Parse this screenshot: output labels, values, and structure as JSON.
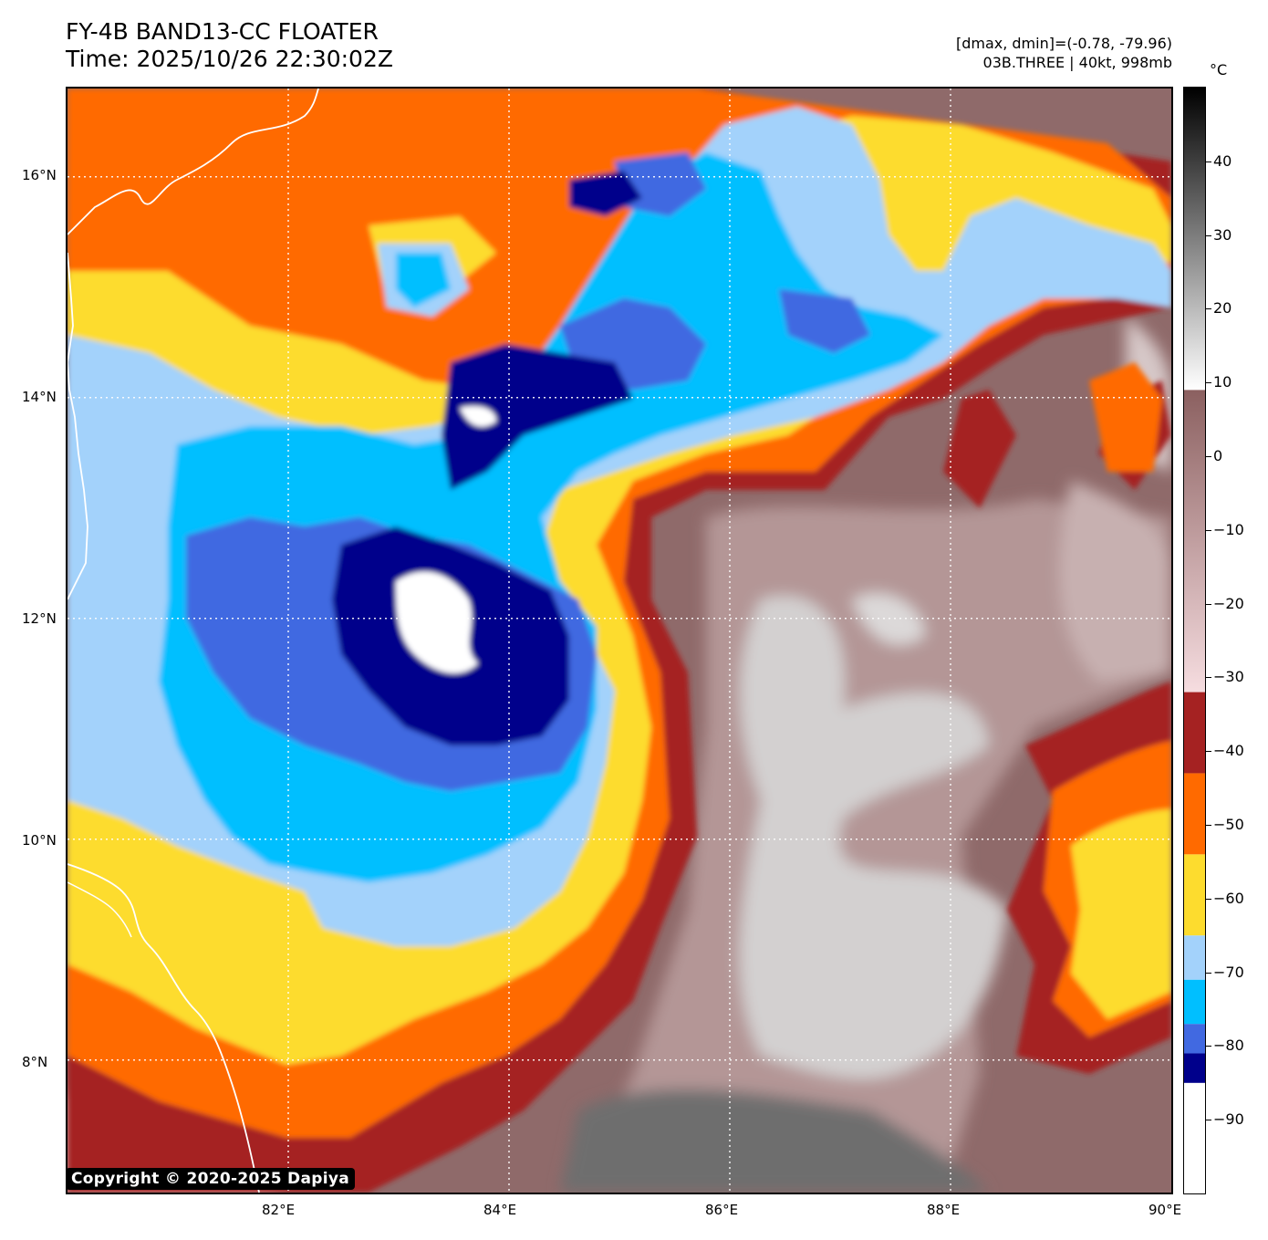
{
  "header": {
    "title_line1": "FY-4B BAND13-CC FLOATER",
    "title_line2": "Time: 2025/10/26 22:30:02Z",
    "info_line1": "[dmax, dmin]=(-0.78, -79.96)",
    "info_line2": "03B.THREE | 40kt, 998mb"
  },
  "map": {
    "lon_range": [
      80.0,
      90.0
    ],
    "lat_range": [
      6.8,
      16.8
    ],
    "lon_ticks": [
      "82°E",
      "84°E",
      "86°E",
      "88°E",
      "90°E"
    ],
    "lon_tick_values": [
      82,
      84,
      86,
      88,
      90
    ],
    "lat_ticks": [
      "16°N",
      "14°N",
      "12°N",
      "10°N",
      "8°N"
    ],
    "lat_tick_values": [
      16,
      14,
      12,
      10,
      8
    ],
    "gridlines": "dotted white"
  },
  "colorbar": {
    "unit": "°C",
    "range": [
      -100,
      50
    ],
    "labels": [
      "40",
      "30",
      "20",
      "10",
      "0",
      "−10",
      "−20",
      "−30",
      "−40",
      "−50",
      "−60",
      "−70",
      "−80",
      "−90"
    ],
    "label_values": [
      40,
      30,
      20,
      10,
      0,
      -10,
      -20,
      -30,
      -40,
      -50,
      -60,
      -70,
      -80,
      -90
    ],
    "color_steps": [
      {
        "from": -100,
        "to": -85,
        "color": "#ffffff"
      },
      {
        "from": -85,
        "to": -81,
        "color": "#00008b"
      },
      {
        "from": -81,
        "to": -77,
        "color": "#4169e1"
      },
      {
        "from": -77,
        "to": -71,
        "color": "#00bfff"
      },
      {
        "from": -71,
        "to": -65,
        "color": "#a3d2fb"
      },
      {
        "from": -65,
        "to": -54,
        "color": "#fddc2e"
      },
      {
        "from": -54,
        "to": -43,
        "color": "#ff6a00"
      },
      {
        "from": -43,
        "to": -32,
        "color": "#a52222"
      }
    ],
    "gradients": [
      {
        "from": -32,
        "to": 9,
        "top_color": "#8b6060",
        "bottom_color": "#f6dde0"
      },
      {
        "from": 9,
        "to": 50,
        "top_color": "#000000",
        "bottom_color": "#ffffff"
      }
    ]
  },
  "copyright": "Copyright © 2020-2025 Dapiya"
}
